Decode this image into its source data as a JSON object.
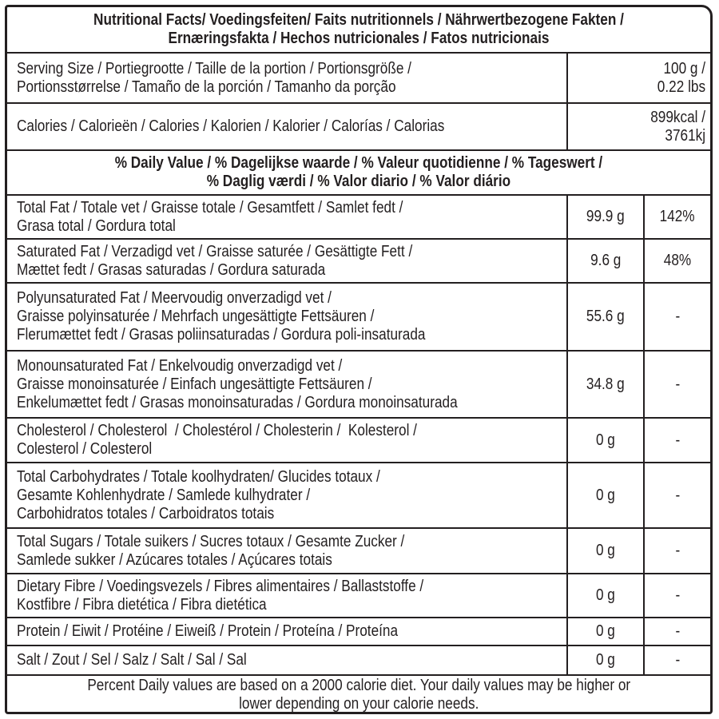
{
  "title": "Nutritional Facts/ Voedingsfeiten/ Faits nutritionnels / Nährwertbezogene Fakten /\nErnæringsfakta / Hechos nutricionales / Fatos nutricionais",
  "serving": {
    "label": "Serving Size / Portiegrootte / Taille de la portion / Portionsgröße /\nPortionsstørrelse / Tamaño de la porción / Tamanho da porção",
    "value": "100 g /\n0.22 lbs"
  },
  "calories": {
    "label": "Calories / Calorieën / Calories / Kalorien / Kalorier / Calorías / Calorias",
    "value": "899kcal /\n3761kj"
  },
  "daily_value_header": "% Daily Value / % Dagelijkse waarde / % Valeur quotidienne / % Tageswert /\n% Daglig værdi / % Valor diario / % Valor diário",
  "nutrients": [
    {
      "label": "Total Fat / Totale vet / Graisse totale / Gesamtfett / Samlet fedt /\nGrasa total / Gordura total",
      "amount": "99.9 g",
      "dv": "142%"
    },
    {
      "label": "Saturated Fat / Verzadigd vet / Graisse saturée / Gesättigte Fett /\nMættet fedt / Grasas saturadas / Gordura saturada",
      "amount": "9.6 g",
      "dv": "48%"
    },
    {
      "label": "Polyunsaturated Fat / Meervoudig onverzadigd vet /\nGraisse polyinsaturée / Mehrfach ungesättigte Fettsäuren /\nFlerumættet fedt / Grasas poliinsaturadas / Gordura poli-insaturada",
      "amount": "55.6 g",
      "dv": "-"
    },
    {
      "label": "Monounsaturated Fat / Enkelvoudig onverzadigd vet /\nGraisse monoinsaturée / Einfach ungesättigte Fettsäuren /\nEnkelumættet fedt / Grasas monoinsaturadas / Gordura monoinsaturada",
      "amount": "34.8 g",
      "dv": "-"
    },
    {
      "label": "Cholesterol / Cholesterol  / Cholestérol / Cholesterin /  Kolesterol /\nColesterol / Colesterol",
      "amount": "0 g",
      "dv": "-"
    },
    {
      "label": "Total Carbohydrates / Totale koolhydraten/ Glucides totaux /\nGesamte Kohlenhydrate / Samlede kulhydrater /\nCarbohidratos totales / Carboidratos totais",
      "amount": "0 g",
      "dv": "-"
    },
    {
      "label": "Total Sugars / Totale suikers / Sucres totaux / Gesamte Zucker /\nSamlede sukker / Azúcares totales / Açúcares totais",
      "amount": "0 g",
      "dv": "-"
    },
    {
      "label": "Dietary Fibre / Voedingsvezels / Fibres alimentaires / Ballaststoffe /\nKostfibre / Fibra dietética / Fibra dietética",
      "amount": "0 g",
      "dv": "-"
    },
    {
      "label": "Protein / Eiwit / Protéine / Eiweiß / Protein / Proteína / Proteína",
      "amount": "0 g",
      "dv": "-"
    },
    {
      "label": "Salt / Zout / Sel / Salz / Salt / Sal / Sal",
      "amount": "0 g",
      "dv": "-"
    }
  ],
  "footnote": "Percent Daily values are based on a 2000 calorie diet. Your daily values may be higher or\nlower depending on your calorie needs."
}
